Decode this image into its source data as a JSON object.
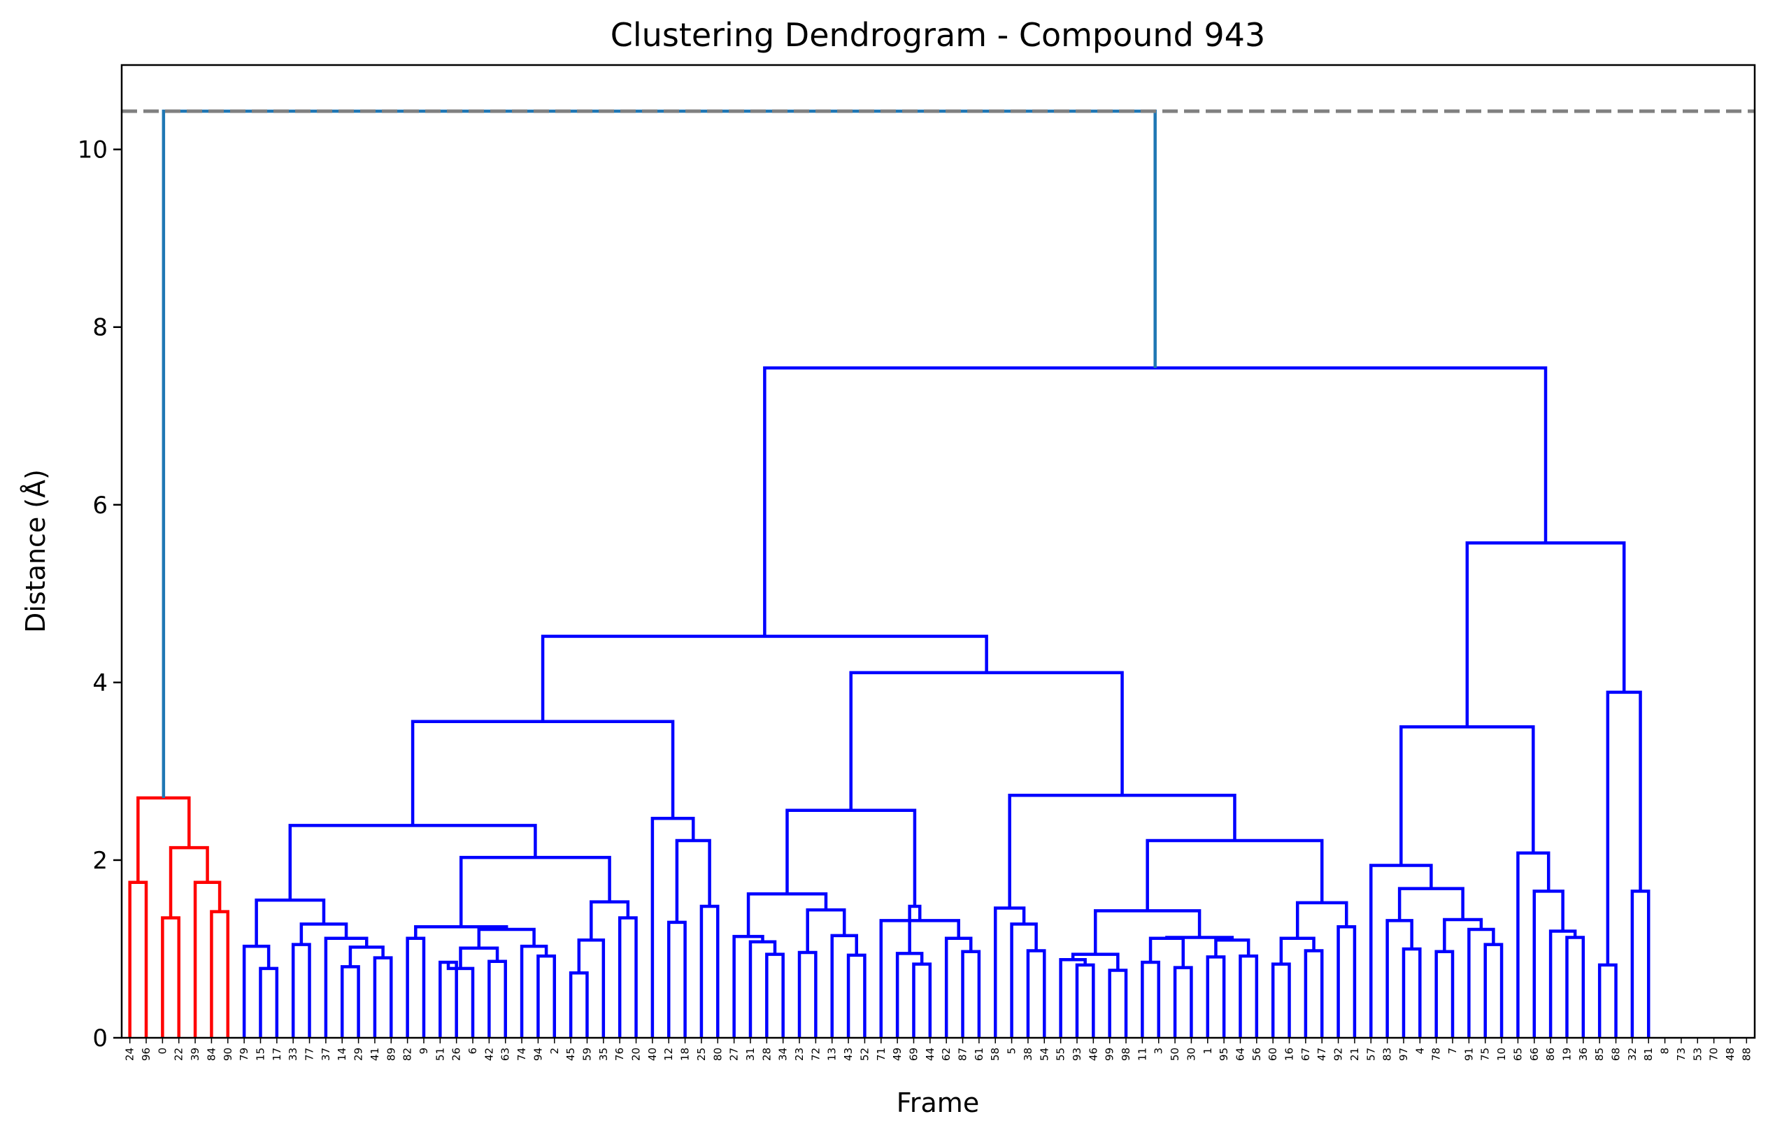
{
  "chart_data": {
    "type": "dendrogram",
    "title": "Clustering Dendrogram - Compound 943",
    "xlabel": "Frame",
    "ylabel": "Distance (Å)",
    "ylim": [
      0,
      10.95
    ],
    "yticks": [
      0,
      2,
      4,
      6,
      8,
      10
    ],
    "grid": false,
    "threshold_line": {
      "y": 10.43,
      "style": "dashed",
      "color": "#808080"
    },
    "colors": {
      "cluster_1": "#ff0000",
      "cluster_2": "#0000ff",
      "above_threshold": "#1f77b4"
    },
    "leaves": [
      "24",
      "96",
      "0",
      "22",
      "39",
      "84",
      "90",
      "79",
      "15",
      "17",
      "33",
      "77",
      "37",
      "14",
      "29",
      "41",
      "89",
      "82",
      "9",
      "51",
      "26",
      "6",
      "42",
      "63",
      "74",
      "94",
      "2",
      "45",
      "59",
      "35",
      "76",
      "20",
      "40",
      "12",
      "18",
      "25",
      "80",
      "27",
      "31",
      "28",
      "34",
      "23",
      "72",
      "13",
      "43",
      "52",
      "71",
      "49",
      "69",
      "44",
      "62",
      "87",
      "61",
      "58",
      "5",
      "38",
      "54",
      "55",
      "93",
      "46",
      "99",
      "98",
      "11",
      "3",
      "50",
      "30",
      "1",
      "95",
      "64",
      "56",
      "60",
      "16",
      "67",
      "47",
      "92",
      "21",
      "57",
      "83",
      "97",
      "4",
      "78",
      "7",
      "91",
      "75",
      "10",
      "65",
      "66",
      "86",
      "19",
      "36",
      "85",
      "68",
      "32",
      "81",
      "8",
      "73",
      "53",
      "70",
      "48",
      "88"
    ],
    "merges": [
      {
        "id": "A1",
        "l": "L0",
        "r": "L1",
        "h": 1.75,
        "c": "r"
      },
      {
        "id": "A2",
        "l": "L5",
        "r": "L6",
        "h": 1.42,
        "c": "r"
      },
      {
        "id": "A3",
        "l": "L4",
        "r": "A2",
        "h": 1.75,
        "c": "r"
      },
      {
        "id": "A4",
        "l": "L2",
        "r": "L3",
        "h": 1.35,
        "c": "r"
      },
      {
        "id": "A5",
        "l": "A4",
        "r": "A3",
        "h": 2.14,
        "c": "r"
      },
      {
        "id": "A6",
        "l": "A1",
        "r": "A5",
        "h": 2.7,
        "c": "r"
      },
      {
        "id": "B1",
        "l": "L8",
        "r": "L9",
        "h": 0.78,
        "c": "b"
      },
      {
        "id": "B2",
        "l": "L7",
        "r": "B1",
        "h": 1.03,
        "c": "b"
      },
      {
        "id": "B3",
        "l": "L10",
        "r": "L11",
        "h": 1.05,
        "c": "b"
      },
      {
        "id": "B4",
        "l": "L13",
        "r": "L14",
        "h": 0.8,
        "c": "b"
      },
      {
        "id": "B5",
        "l": "L15",
        "r": "L16",
        "h": 0.9,
        "c": "b"
      },
      {
        "id": "B6",
        "l": "B4",
        "r": "B5",
        "h": 1.02,
        "c": "b"
      },
      {
        "id": "B7",
        "l": "L12",
        "r": "B6",
        "h": 1.12,
        "c": "b"
      },
      {
        "id": "B8",
        "l": "B3",
        "r": "B7",
        "h": 1.28,
        "c": "b"
      },
      {
        "id": "B9",
        "l": "B2",
        "r": "B8",
        "h": 1.55,
        "c": "b"
      },
      {
        "id": "B10",
        "l": "L17",
        "r": "L18",
        "h": 1.12,
        "c": "b"
      },
      {
        "id": "B11",
        "l": "L19",
        "r": "L20",
        "h": 0.85,
        "c": "b"
      },
      {
        "id": "B12",
        "l": "B11",
        "r": "L21",
        "h": 0.78,
        "c": "b"
      },
      {
        "id": "B13",
        "l": "L22",
        "r": "L23",
        "h": 0.86,
        "c": "b"
      },
      {
        "id": "B14",
        "l": "B12",
        "r": "B13",
        "h": 1.01,
        "c": "b"
      },
      {
        "id": "B15",
        "l": "L25",
        "r": "L26",
        "h": 0.92,
        "c": "b"
      },
      {
        "id": "B16",
        "l": "L24",
        "r": "B15",
        "h": 1.03,
        "c": "b"
      },
      {
        "id": "B17",
        "l": "B14",
        "r": "B16",
        "h": 1.22,
        "c": "b"
      },
      {
        "id": "B18",
        "l": "B10",
        "r": "B17",
        "h": 1.25,
        "c": "b"
      },
      {
        "id": "B19",
        "l": "L27",
        "r": "L28",
        "h": 0.73,
        "c": "b"
      },
      {
        "id": "B20",
        "l": "L29",
        "r": "B19",
        "h": 1.1,
        "c": "b"
      },
      {
        "id": "B21",
        "l": "L30",
        "r": "L31",
        "h": 1.35,
        "c": "b"
      },
      {
        "id": "B22",
        "l": "B20",
        "r": "B21",
        "h": 1.53,
        "c": "b"
      },
      {
        "id": "B23",
        "l": "B18",
        "r": "B22",
        "h": 2.03,
        "c": "b"
      },
      {
        "id": "B24",
        "l": "B9",
        "r": "B23",
        "h": 2.39,
        "c": "b"
      },
      {
        "id": "B25",
        "l": "L33",
        "r": "L34",
        "h": 1.3,
        "c": "b"
      },
      {
        "id": "B26",
        "l": "L35",
        "r": "L36",
        "h": 1.48,
        "c": "b"
      },
      {
        "id": "B27",
        "l": "B25",
        "r": "B26",
        "h": 2.22,
        "c": "b"
      },
      {
        "id": "B28",
        "l": "L32",
        "r": "B27",
        "h": 2.47,
        "c": "b"
      },
      {
        "id": "B29",
        "l": "B24",
        "r": "B28",
        "h": 3.56,
        "c": "b"
      },
      {
        "id": "C1",
        "l": "L39",
        "r": "L40",
        "h": 0.94,
        "c": "b"
      },
      {
        "id": "C2",
        "l": "L38",
        "r": "C1",
        "h": 1.08,
        "c": "b"
      },
      {
        "id": "C3",
        "l": "L37",
        "r": "C2",
        "h": 1.14,
        "c": "b"
      },
      {
        "id": "C4",
        "l": "L41",
        "r": "L42",
        "h": 0.96,
        "c": "b"
      },
      {
        "id": "C5",
        "l": "L44",
        "r": "L45",
        "h": 0.93,
        "c": "b"
      },
      {
        "id": "C6",
        "l": "L43",
        "r": "C5",
        "h": 1.15,
        "c": "b"
      },
      {
        "id": "C7",
        "l": "C4",
        "r": "C6",
        "h": 1.44,
        "c": "b"
      },
      {
        "id": "C8",
        "l": "C3",
        "r": "C7",
        "h": 1.62,
        "c": "b"
      },
      {
        "id": "C9",
        "l": "L48",
        "r": "L49",
        "h": 0.83,
        "c": "b"
      },
      {
        "id": "C10",
        "l": "L47",
        "r": "C9",
        "h": 0.95,
        "c": "b"
      },
      {
        "id": "C11",
        "l": "L51",
        "r": "L52",
        "h": 0.97,
        "c": "b"
      },
      {
        "id": "C12",
        "l": "L50",
        "r": "C11",
        "h": 1.12,
        "c": "b"
      },
      {
        "id": "C13",
        "l": "L46",
        "r": "C12",
        "h": 1.32,
        "c": "b"
      },
      {
        "id": "C14",
        "l": "C10",
        "r": "C13",
        "h": 1.48,
        "c": "b"
      },
      {
        "id": "C15",
        "l": "C8",
        "r": "C14",
        "h": 2.56,
        "c": "b"
      },
      {
        "id": "D1",
        "l": "L55",
        "r": "L56",
        "h": 0.98,
        "c": "b"
      },
      {
        "id": "D2",
        "l": "L54",
        "r": "D1",
        "h": 1.28,
        "c": "b"
      },
      {
        "id": "D3",
        "l": "L53",
        "r": "D2",
        "h": 1.46,
        "c": "b"
      },
      {
        "id": "D4",
        "l": "L58",
        "r": "L59",
        "h": 0.82,
        "c": "b"
      },
      {
        "id": "D5",
        "l": "L57",
        "r": "D4",
        "h": 0.88,
        "c": "b"
      },
      {
        "id": "D6",
        "l": "L60",
        "r": "L61",
        "h": 0.76,
        "c": "b"
      },
      {
        "id": "D7",
        "l": "D5",
        "r": "D6",
        "h": 0.94,
        "c": "b"
      },
      {
        "id": "D8",
        "l": "L62",
        "r": "L63",
        "h": 0.85,
        "c": "b"
      },
      {
        "id": "D9",
        "l": "L64",
        "r": "L65",
        "h": 0.79,
        "c": "b"
      },
      {
        "id": "D10",
        "l": "D8",
        "r": "D9",
        "h": 1.12,
        "c": "b"
      },
      {
        "id": "D11",
        "l": "L66",
        "r": "L67",
        "h": 0.91,
        "c": "b"
      },
      {
        "id": "D12",
        "l": "L68",
        "r": "L69",
        "h": 0.92,
        "c": "b"
      },
      {
        "id": "D13",
        "l": "D11",
        "r": "D12",
        "h": 1.1,
        "c": "b"
      },
      {
        "id": "D14",
        "l": "D10",
        "r": "D13",
        "h": 1.13,
        "c": "b"
      },
      {
        "id": "D15",
        "l": "D7",
        "r": "D14",
        "h": 1.43,
        "c": "b"
      },
      {
        "id": "D16",
        "l": "L70",
        "r": "L71",
        "h": 0.83,
        "c": "b"
      },
      {
        "id": "D17",
        "l": "L72",
        "r": "L73",
        "h": 0.98,
        "c": "b"
      },
      {
        "id": "D18",
        "l": "D16",
        "r": "D17",
        "h": 1.12,
        "c": "b"
      },
      {
        "id": "D19",
        "l": "L74",
        "r": "L75",
        "h": 1.25,
        "c": "b"
      },
      {
        "id": "D20",
        "l": "D18",
        "r": "D19",
        "h": 1.52,
        "c": "b"
      },
      {
        "id": "D21",
        "l": "D15",
        "r": "D20",
        "h": 2.22,
        "c": "b"
      },
      {
        "id": "D22",
        "l": "D3",
        "r": "D21",
        "h": 2.73,
        "c": "b"
      },
      {
        "id": "D23",
        "l": "C15",
        "r": "D22",
        "h": 4.11,
        "c": "b"
      },
      {
        "id": "D24",
        "l": "B29",
        "r": "D23",
        "h": 4.52,
        "c": "b"
      },
      {
        "id": "E1",
        "l": "L78",
        "r": "L79",
        "h": 1.0,
        "c": "b"
      },
      {
        "id": "E2",
        "l": "L77",
        "r": "E1",
        "h": 1.32,
        "c": "b"
      },
      {
        "id": "E3",
        "l": "L80",
        "r": "L81",
        "h": 0.97,
        "c": "b"
      },
      {
        "id": "E4",
        "l": "L83",
        "r": "L84",
        "h": 1.05,
        "c": "b"
      },
      {
        "id": "E5",
        "l": "L82",
        "r": "E4",
        "h": 1.22,
        "c": "b"
      },
      {
        "id": "E6",
        "l": "E3",
        "r": "E5",
        "h": 1.33,
        "c": "b"
      },
      {
        "id": "E7",
        "l": "E2",
        "r": "E6",
        "h": 1.68,
        "c": "b"
      },
      {
        "id": "E8",
        "l": "L76",
        "r": "E7",
        "h": 1.94,
        "c": "b"
      },
      {
        "id": "E9",
        "l": "L88",
        "r": "L89",
        "h": 1.13,
        "c": "b"
      },
      {
        "id": "E10",
        "l": "L87",
        "r": "E9",
        "h": 1.2,
        "c": "b"
      },
      {
        "id": "E11",
        "l": "L86",
        "r": "E10",
        "h": 1.65,
        "c": "b"
      },
      {
        "id": "E12",
        "l": "L85",
        "r": "E11",
        "h": 2.08,
        "c": "b"
      },
      {
        "id": "E13",
        "l": "E8",
        "r": "E12",
        "h": 3.5,
        "c": "b"
      },
      {
        "id": "E14",
        "l": "L90",
        "r": "L91",
        "h": 0.82,
        "c": "b"
      },
      {
        "id": "E15",
        "l": "L92",
        "r": "L93",
        "h": 1.65,
        "c": "b"
      },
      {
        "id": "E16",
        "l": "E14",
        "r": "E15",
        "h": 3.89,
        "c": "b"
      },
      {
        "id": "E17",
        "l": "E13",
        "r": "E16",
        "h": 5.57,
        "c": "b"
      },
      {
        "id": "E18",
        "l": "D24",
        "r": "E17",
        "h": 7.54,
        "c": "b"
      },
      {
        "id": "ROOT",
        "l": "A6",
        "r": "E18",
        "h": 10.43,
        "c": "t"
      }
    ]
  }
}
